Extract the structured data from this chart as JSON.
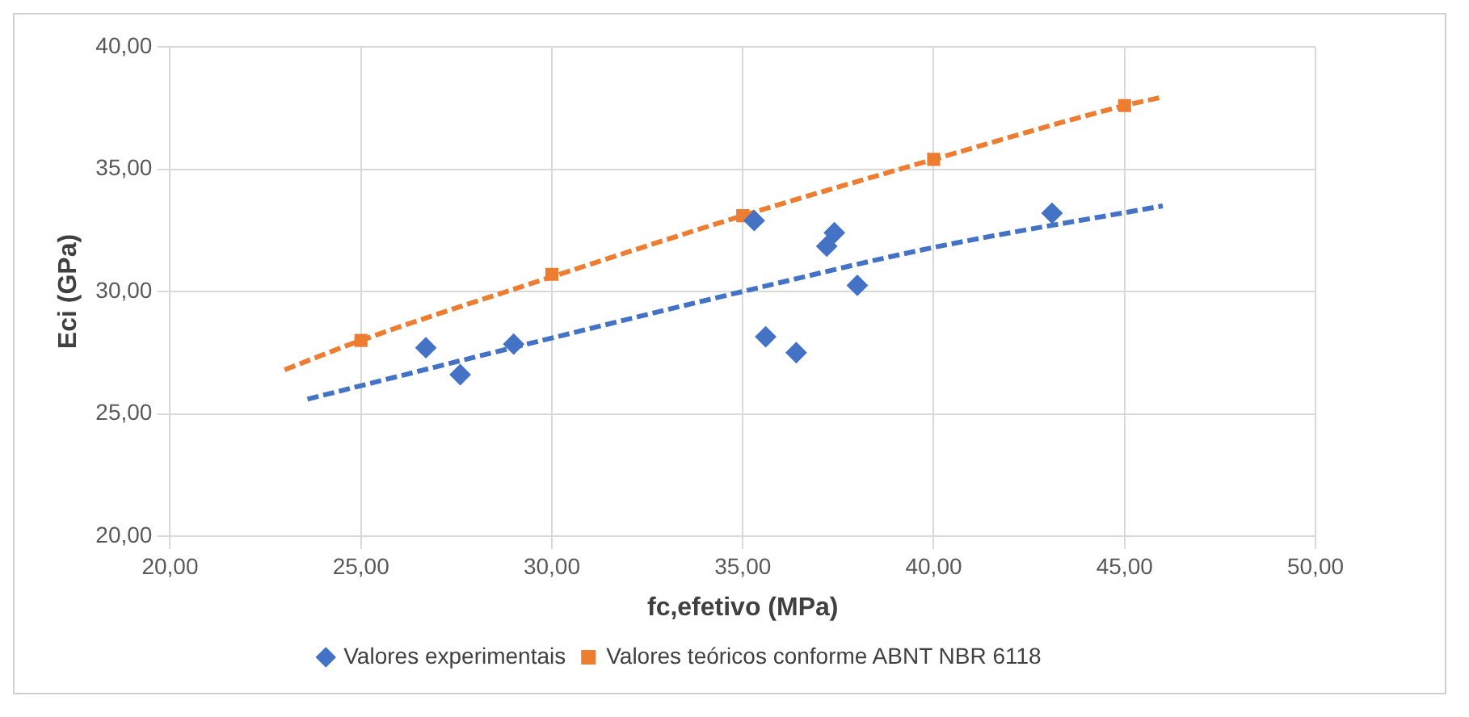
{
  "chart_data": {
    "type": "scatter",
    "xlabel": "fc,efetivo (MPa)",
    "ylabel": "Eci (GPa)",
    "xlim": [
      20,
      50
    ],
    "xticks": [
      {
        "value": 20,
        "label": "20,00"
      },
      {
        "value": 25,
        "label": "25,00"
      },
      {
        "value": 30,
        "label": "30,00"
      },
      {
        "value": 35,
        "label": "35,00"
      },
      {
        "value": 40,
        "label": "40,00"
      },
      {
        "value": 45,
        "label": "45,00"
      },
      {
        "value": 50,
        "label": "50,00"
      }
    ],
    "ylim": [
      20,
      40
    ],
    "yticks": [
      {
        "value": 20,
        "label": "20,00"
      },
      {
        "value": 25,
        "label": "25,00"
      },
      {
        "value": 30,
        "label": "30,00"
      },
      {
        "value": 35,
        "label": "35,00"
      },
      {
        "value": 40,
        "label": "40,00"
      }
    ],
    "grid": true,
    "legend": "bottom",
    "series": [
      {
        "name": "Valores experimentais",
        "type": "scatter",
        "marker": "diamond",
        "color": "#4472c4",
        "x": [
          26.7,
          27.6,
          29.0,
          35.3,
          35.6,
          36.4,
          37.2,
          37.4,
          38.0,
          43.1
        ],
        "values": [
          27.7,
          26.6,
          27.85,
          32.9,
          28.15,
          27.5,
          31.85,
          32.4,
          30.25,
          33.2
        ]
      },
      {
        "name": "Valores teóricos conforme ABNT NBR 6118",
        "type": "scatter",
        "marker": "square",
        "color": "#ed7d31",
        "x": [
          25,
          30,
          35,
          40,
          45
        ],
        "values": [
          28.0,
          30.7,
          33.1,
          35.4,
          37.6
        ]
      },
      {
        "type": "line",
        "marker": "none",
        "line_style": "dashed",
        "color": "#4472c4",
        "x": [
          23.6,
          30,
          35,
          40,
          46
        ],
        "values": [
          25.6,
          28.1,
          30.0,
          31.8,
          33.5
        ]
      },
      {
        "type": "line",
        "marker": "none",
        "line_style": "dashed",
        "color": "#ed7d31",
        "x": [
          23,
          25,
          30,
          35,
          40,
          45,
          46
        ],
        "values": [
          26.8,
          28.0,
          30.6,
          33.1,
          35.4,
          37.6,
          37.95
        ]
      }
    ]
  }
}
